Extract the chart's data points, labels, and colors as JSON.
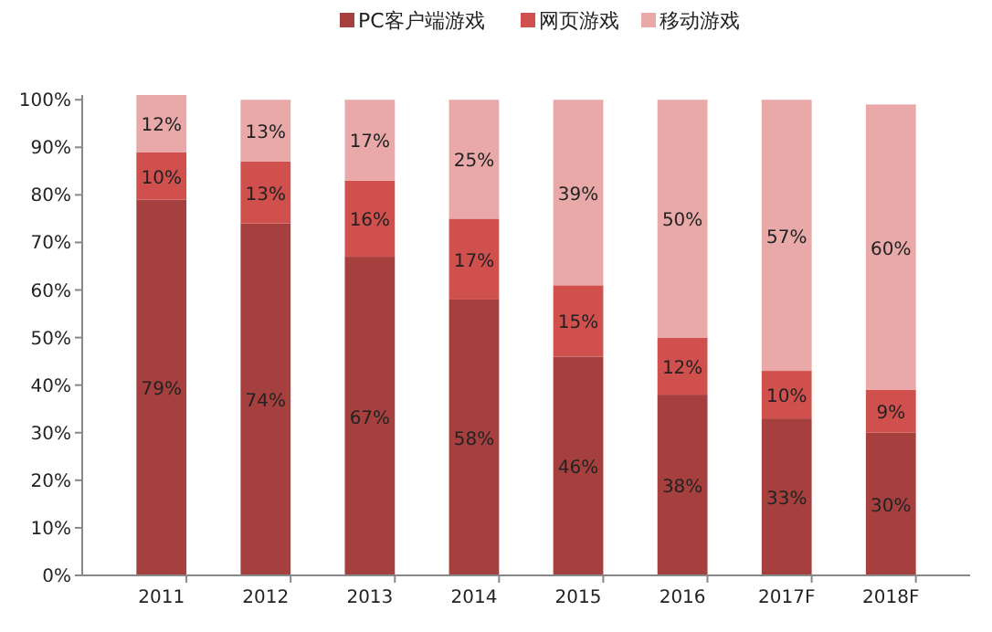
{
  "chart_data": {
    "type": "bar",
    "stacked": true,
    "categories": [
      "2011",
      "2012",
      "2013",
      "2014",
      "2015",
      "2016",
      "2017F",
      "2018F"
    ],
    "series": [
      {
        "name": "PC客户端游戏",
        "color": "#a5403e",
        "values": [
          79,
          74,
          67,
          58,
          46,
          38,
          33,
          30
        ],
        "value_labels": [
          "79%",
          "74%",
          "67%",
          "58%",
          "46%",
          "38%",
          "33%",
          "30%"
        ]
      },
      {
        "name": "网页游戏",
        "color": "#d0504e",
        "values": [
          10,
          13,
          16,
          17,
          15,
          12,
          10,
          9
        ],
        "value_labels": [
          "10%",
          "13%",
          "16%",
          "17%",
          "15%",
          "12%",
          "10%",
          "9%"
        ]
      },
      {
        "name": "移动游戏",
        "color": "#e8a9a8",
        "values": [
          12,
          13,
          17,
          25,
          39,
          50,
          57,
          60
        ],
        "value_labels": [
          "12%",
          "13%",
          "17%",
          "25%",
          "39%",
          "50%",
          "57%",
          "60%"
        ]
      }
    ],
    "ylim": [
      0,
      101
    ],
    "yticks": [
      {
        "value": 0,
        "label": "0%"
      },
      {
        "value": 10,
        "label": "10%"
      },
      {
        "value": 20,
        "label": "20%"
      },
      {
        "value": 30,
        "label": "30%"
      },
      {
        "value": 40,
        "label": "40%"
      },
      {
        "value": 50,
        "label": "50%"
      },
      {
        "value": 60,
        "label": "60%"
      },
      {
        "value": 70,
        "label": "70%"
      },
      {
        "value": 80,
        "label": "80%"
      },
      {
        "value": 90,
        "label": "90%"
      },
      {
        "value": 100,
        "label": "100%"
      }
    ],
    "grid": false,
    "legend": "top"
  }
}
